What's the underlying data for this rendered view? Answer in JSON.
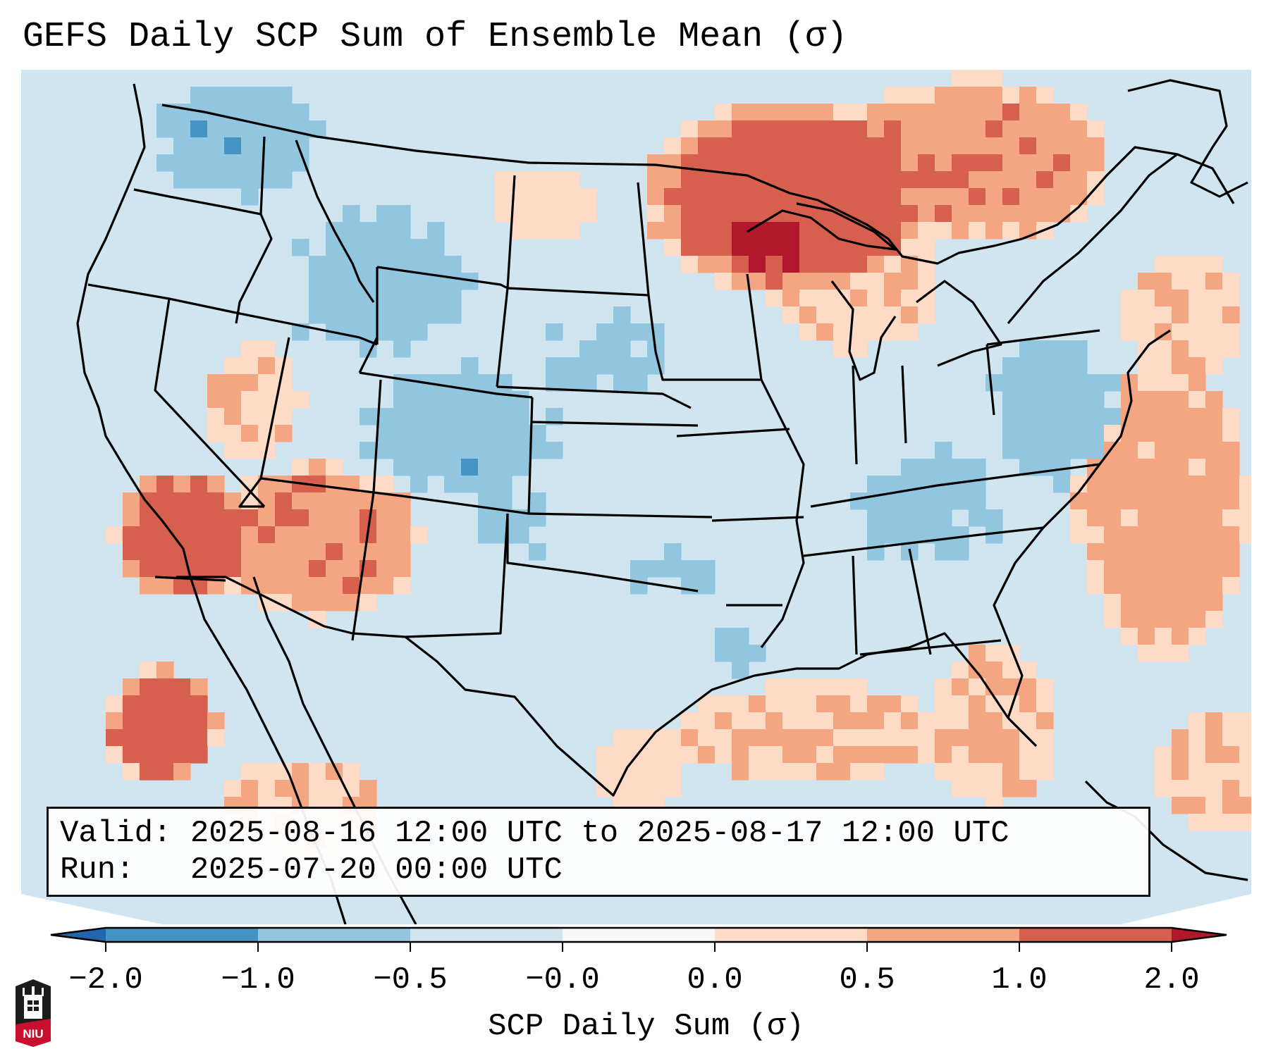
{
  "title": "GEFS Daily SCP Sum of Ensemble Mean (σ)",
  "info": {
    "valid_label": "Valid:",
    "valid_value": "2025-08-16 12:00 UTC to 2025-08-17 12:00 UTC",
    "run_label": "Run:",
    "run_value": "2025-07-20 00:00 UTC"
  },
  "logo": {
    "text": "NIU",
    "icon": "niu-university-logo"
  },
  "colorbar": {
    "label": "SCP Daily Sum (σ)",
    "extend": "both",
    "ticks": [
      "-2.0",
      "-1.0",
      "-0.5",
      "-0.0",
      "0.0",
      "0.5",
      "1.0",
      "2.0"
    ],
    "tick_labels": [
      "−2.0",
      "−1.0",
      "−0.5",
      "−0.0",
      "0.0",
      "0.5",
      "1.0",
      "2.0"
    ],
    "levels": [
      -2.0,
      -1.0,
      -0.5,
      -0.0,
      0.0,
      0.5,
      1.0,
      2.0
    ],
    "colors": {
      "under": "#2166ac",
      "bin_-2_-1": "#4393c3",
      "bin_-1_-0.5": "#92c5de",
      "bin_-0.5_0": "#d1e5f0",
      "bin_0_0": "#f7f7f7",
      "bin_0_0.5": "#fddbc7",
      "bin_0.5_1": "#f4a582",
      "bin_1_2": "#d6604d",
      "over": "#b2182b"
    }
  },
  "map": {
    "projection": "lambert-conformal",
    "region": "CONUS",
    "background_value": -0.25,
    "highlights": [
      {
        "area": "Lake Superior / Ontario",
        "value": 1.5
      },
      {
        "area": "Southern California",
        "value": 1.5
      },
      {
        "area": "Baja Pacific",
        "value": 1.2
      },
      {
        "area": "Colorado / Wyoming",
        "value": -0.7
      },
      {
        "area": "Mid-Atlantic coast",
        "value": -0.7
      },
      {
        "area": "Gulf of Mexico",
        "value": 0.4
      },
      {
        "area": "Western Atlantic",
        "value": 0.5
      }
    ]
  }
}
